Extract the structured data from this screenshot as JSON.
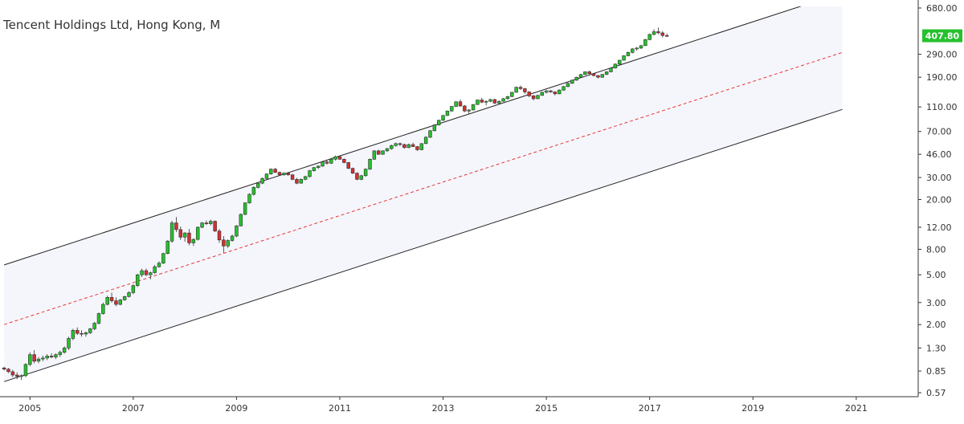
{
  "chart_data": {
    "type": "candlestick",
    "title": "Tencent Holdings Ltd, Hong Kong, M",
    "scale": "log",
    "y_ticks": [
      {
        "value": 680,
        "label": "680.00"
      },
      {
        "value": 290,
        "label": "290.00"
      },
      {
        "value": 190,
        "label": "190.00"
      },
      {
        "value": 110,
        "label": "110.00"
      },
      {
        "value": 70,
        "label": "70.00"
      },
      {
        "value": 46,
        "label": "46.00"
      },
      {
        "value": 30,
        "label": "30.00"
      },
      {
        "value": 20,
        "label": "20.00"
      },
      {
        "value": 12,
        "label": "12.00"
      },
      {
        "value": 8,
        "label": "8.00"
      },
      {
        "value": 5,
        "label": "5.00"
      },
      {
        "value": 3,
        "label": "3.00"
      },
      {
        "value": 2,
        "label": "2.00"
      },
      {
        "value": 1.3,
        "label": "1.30"
      },
      {
        "value": 0.85,
        "label": "0.85"
      },
      {
        "value": 0.57,
        "label": "0.57"
      }
    ],
    "x_ticks": [
      "2005",
      "2007",
      "2009",
      "2011",
      "2013",
      "2015",
      "2017",
      "2019",
      "2021"
    ],
    "x_range": [
      2004.42,
      2022.2
    ],
    "y_range": [
      0.53,
      700
    ],
    "last_price": {
      "value": 407.8,
      "label": "407.80",
      "color": "#26c12e"
    },
    "colors": {
      "up": "#26c12e",
      "down": "#d32f2f",
      "channel_fill": "#f5f6fc",
      "median": "#e53935",
      "channel": "#222222"
    },
    "channel": {
      "start": {
        "year": 2004.5
      },
      "end": {
        "year": 2020.73
      },
      "upper": [
        6.0,
        900
      ],
      "median": [
        2.0,
        300
      ],
      "lower": [
        0.7,
        105
      ]
    },
    "series": [
      {
        "values": [
          [
            0.9,
            0.92,
            0.86,
            0.88
          ],
          [
            0.88,
            0.9,
            0.82,
            0.84
          ],
          [
            0.84,
            0.87,
            0.76,
            0.79
          ],
          [
            0.79,
            0.83,
            0.73,
            0.77
          ],
          [
            0.77,
            0.8,
            0.72,
            0.78
          ],
          [
            0.78,
            0.98,
            0.76,
            0.96
          ],
          [
            0.96,
            1.2,
            0.93,
            1.15
          ],
          [
            1.15,
            1.25,
            0.98,
            1.02
          ],
          [
            1.02,
            1.1,
            0.98,
            1.06
          ],
          [
            1.06,
            1.13,
            1.02,
            1.08
          ],
          [
            1.08,
            1.16,
            1.04,
            1.12
          ],
          [
            1.12,
            1.18,
            1.08,
            1.1
          ],
          [
            1.1,
            1.18,
            1.06,
            1.15
          ],
          [
            1.15,
            1.24,
            1.1,
            1.2
          ],
          [
            1.2,
            1.34,
            1.17,
            1.3
          ],
          [
            1.3,
            1.6,
            1.25,
            1.55
          ],
          [
            1.55,
            1.85,
            1.5,
            1.8
          ],
          [
            1.8,
            1.9,
            1.65,
            1.7
          ],
          [
            1.7,
            1.8,
            1.6,
            1.68
          ],
          [
            1.68,
            1.76,
            1.6,
            1.72
          ],
          [
            1.72,
            1.88,
            1.68,
            1.85
          ],
          [
            1.85,
            2.1,
            1.8,
            2.05
          ],
          [
            2.05,
            2.5,
            2.0,
            2.45
          ],
          [
            2.45,
            3.0,
            2.4,
            2.9
          ],
          [
            2.9,
            3.4,
            2.85,
            3.3
          ],
          [
            3.3,
            3.6,
            3.0,
            3.1
          ],
          [
            3.1,
            3.3,
            2.8,
            2.9
          ],
          [
            2.9,
            3.2,
            2.85,
            3.15
          ],
          [
            3.15,
            3.4,
            3.1,
            3.35
          ],
          [
            3.35,
            3.7,
            3.3,
            3.6
          ],
          [
            3.6,
            4.2,
            3.5,
            4.1
          ],
          [
            4.1,
            5.1,
            4.0,
            5.0
          ],
          [
            5.0,
            5.6,
            4.8,
            5.4
          ],
          [
            5.4,
            5.6,
            4.9,
            5.0
          ],
          [
            5.0,
            5.3,
            4.6,
            5.2
          ],
          [
            5.2,
            6.0,
            5.1,
            5.8
          ],
          [
            5.8,
            6.4,
            5.7,
            6.2
          ],
          [
            6.2,
            7.5,
            6.1,
            7.4
          ],
          [
            7.4,
            9.5,
            7.3,
            9.3
          ],
          [
            9.3,
            13.5,
            9.0,
            13.0
          ],
          [
            13.0,
            14.5,
            11.0,
            11.5
          ],
          [
            11.5,
            12.2,
            9.5,
            10.0
          ],
          [
            10.0,
            11.0,
            9.2,
            10.8
          ],
          [
            10.8,
            11.6,
            8.6,
            9.0
          ],
          [
            9.0,
            9.8,
            8.5,
            9.6
          ],
          [
            9.6,
            12.2,
            9.4,
            12.0
          ],
          [
            12.0,
            13.2,
            11.8,
            13.0
          ],
          [
            13.0,
            13.6,
            12.5,
            12.8
          ],
          [
            12.8,
            13.8,
            12.4,
            13.4
          ],
          [
            13.4,
            13.6,
            11.0,
            11.2
          ],
          [
            11.2,
            11.6,
            9.0,
            9.5
          ],
          [
            9.5,
            10.2,
            7.5,
            8.5
          ],
          [
            8.5,
            9.6,
            8.2,
            9.4
          ],
          [
            9.4,
            10.5,
            9.2,
            10.2
          ],
          [
            10.2,
            12.5,
            10.0,
            12.3
          ],
          [
            12.3,
            15.5,
            12.2,
            15.2
          ],
          [
            15.2,
            19.0,
            15.0,
            18.8
          ],
          [
            18.8,
            22.5,
            18.5,
            22.0
          ],
          [
            22.0,
            25.5,
            21.5,
            25.0
          ],
          [
            25.0,
            27.5,
            24.5,
            27.0
          ],
          [
            27.0,
            30.0,
            26.5,
            29.5
          ],
          [
            29.5,
            32.5,
            29.0,
            32.0
          ],
          [
            32.0,
            35.5,
            31.5,
            35.0
          ],
          [
            35.0,
            35.8,
            32.5,
            33.0
          ],
          [
            33.0,
            33.5,
            31.0,
            31.5
          ],
          [
            31.5,
            33.0,
            31.0,
            32.5
          ],
          [
            32.5,
            33.2,
            31.0,
            31.5
          ],
          [
            31.5,
            32.0,
            28.5,
            29.0
          ],
          [
            29.0,
            29.8,
            26.5,
            27.0
          ],
          [
            27.0,
            29.5,
            26.8,
            29.0
          ],
          [
            29.0,
            31.0,
            28.5,
            30.5
          ],
          [
            30.5,
            34.5,
            30.0,
            34.0
          ],
          [
            34.0,
            36.5,
            33.5,
            36.0
          ],
          [
            36.0,
            37.5,
            35.0,
            37.0
          ],
          [
            37.0,
            40.5,
            36.5,
            40.0
          ],
          [
            40.0,
            41.0,
            38.0,
            39.0
          ],
          [
            39.0,
            43.0,
            38.5,
            42.0
          ],
          [
            42.0,
            45.0,
            41.0,
            44.0
          ],
          [
            44.0,
            45.0,
            41.5,
            42.0
          ],
          [
            42.0,
            42.5,
            39.0,
            39.5
          ],
          [
            39.5,
            40.0,
            35.0,
            35.5
          ],
          [
            35.5,
            36.0,
            32.0,
            32.5
          ],
          [
            32.5,
            33.0,
            28.5,
            29.0
          ],
          [
            29.0,
            31.5,
            28.5,
            31.0
          ],
          [
            31.0,
            35.5,
            30.5,
            35.0
          ],
          [
            35.0,
            42.5,
            34.5,
            42.0
          ],
          [
            42.0,
            49.5,
            41.5,
            49.0
          ],
          [
            49.0,
            50.0,
            45.5,
            46.0
          ],
          [
            46.0,
            49.5,
            45.5,
            49.0
          ],
          [
            49.0,
            52.0,
            48.0,
            51.0
          ],
          [
            51.0,
            55.0,
            50.0,
            54.0
          ],
          [
            54.0,
            57.0,
            53.0,
            56.0
          ],
          [
            56.0,
            57.0,
            53.5,
            55.0
          ],
          [
            55.0,
            56.0,
            51.0,
            52.0
          ],
          [
            52.0,
            56.0,
            51.5,
            55.0
          ],
          [
            55.0,
            57.0,
            52.5,
            53.0
          ],
          [
            53.0,
            53.5,
            49.0,
            50.0
          ],
          [
            50.0,
            56.5,
            49.5,
            56.0
          ],
          [
            56.0,
            64.0,
            55.5,
            63.0
          ],
          [
            63.0,
            72.0,
            62.0,
            71.0
          ],
          [
            71.0,
            80.0,
            70.0,
            79.0
          ],
          [
            79.0,
            87.0,
            78.0,
            86.0
          ],
          [
            86.0,
            95.0,
            85.0,
            94.0
          ],
          [
            94.0,
            103.0,
            93.0,
            102.0
          ],
          [
            102.0,
            112.0,
            101.0,
            111.0
          ],
          [
            111.0,
            122.0,
            110.0,
            121.0
          ],
          [
            121.0,
            126.0,
            110.0,
            112.0
          ],
          [
            112.0,
            114.0,
            100.0,
            102.0
          ],
          [
            102.0,
            106.0,
            96.0,
            104.0
          ],
          [
            104.0,
            116.0,
            103.0,
            115.0
          ],
          [
            115.0,
            126.0,
            114.0,
            125.0
          ],
          [
            125.0,
            130.0,
            118.0,
            120.0
          ],
          [
            120.0,
            124.0,
            113.0,
            122.0
          ],
          [
            122.0,
            128.0,
            120.0,
            126.0
          ],
          [
            126.0,
            128.0,
            116.0,
            118.0
          ],
          [
            118.0,
            124.0,
            115.0,
            122.0
          ],
          [
            122.0,
            130.0,
            121.0,
            128.0
          ],
          [
            128.0,
            135.0,
            126.0,
            133.0
          ],
          [
            133.0,
            145.0,
            132.0,
            144.0
          ],
          [
            144.0,
            160.0,
            143.0,
            158.0
          ],
          [
            158.0,
            163.0,
            150.0,
            154.0
          ],
          [
            154.0,
            156.0,
            140.0,
            145.0
          ],
          [
            145.0,
            147.0,
            132.0,
            135.0
          ],
          [
            135.0,
            137.0,
            124.0,
            128.0
          ],
          [
            128.0,
            138.0,
            127.0,
            136.0
          ],
          [
            136.0,
            146.0,
            135.0,
            144.0
          ],
          [
            144.0,
            150.0,
            141.0,
            148.0
          ],
          [
            148.0,
            150.0,
            143.0,
            145.0
          ],
          [
            145.0,
            147.0,
            136.0,
            140.0
          ],
          [
            140.0,
            152.0,
            139.0,
            150.0
          ],
          [
            150.0,
            162.0,
            148.0,
            160.0
          ],
          [
            160.0,
            172.0,
            158.0,
            170.0
          ],
          [
            170.0,
            182.0,
            168.0,
            180.0
          ],
          [
            180.0,
            192.0,
            178.0,
            190.0
          ],
          [
            190.0,
            202.0,
            188.0,
            200.0
          ],
          [
            200.0,
            212.0,
            198.0,
            210.0
          ],
          [
            210.0,
            215.0,
            200.0,
            203.0
          ],
          [
            203.0,
            205.0,
            193.0,
            196.0
          ],
          [
            196.0,
            198.0,
            186.0,
            190.0
          ],
          [
            190.0,
            202.0,
            188.0,
            200.0
          ],
          [
            200.0,
            212.0,
            198.0,
            210.0
          ],
          [
            210.0,
            228.0,
            208.0,
            225.0
          ],
          [
            225.0,
            245.0,
            223.0,
            242.0
          ],
          [
            242.0,
            262.0,
            240.0,
            260.0
          ],
          [
            260.0,
            285.0,
            258.0,
            282.0
          ],
          [
            282.0,
            305.0,
            280.0,
            300.0
          ],
          [
            300.0,
            325.0,
            295.0,
            320.0
          ],
          [
            320.0,
            332.0,
            310.0,
            325.0
          ],
          [
            325.0,
            345.0,
            320.0,
            340.0
          ],
          [
            340.0,
            385.0,
            338.0,
            380.0
          ],
          [
            380.0,
            425.0,
            375.0,
            418.0
          ],
          [
            418.0,
            460.0,
            410.0,
            440.0
          ],
          [
            440.0,
            475.0,
            420.0,
            430.0
          ],
          [
            430.0,
            445.0,
            395.0,
            410.0
          ],
          [
            410.0,
            425.0,
            398.0,
            407.8
          ]
        ]
      }
    ]
  }
}
